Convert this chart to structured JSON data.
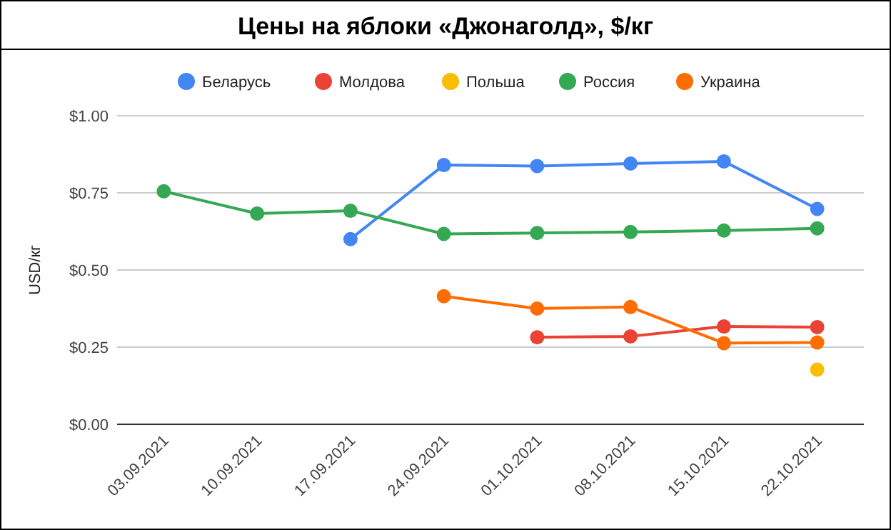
{
  "chart_data": {
    "type": "line",
    "title": "Цены на яблоки «Джонаголд», $/кг",
    "ylabel": "USD/кг",
    "categories": [
      "03.09.2021",
      "10.09.2021",
      "17.09.2021",
      "24.09.2021",
      "01.10.2021",
      "08.10.2021",
      "15.10.2021",
      "22.10.2021"
    ],
    "series": [
      {
        "name": "Беларусь",
        "color": "#4285f4",
        "values": [
          null,
          null,
          0.6,
          0.84,
          0.837,
          0.845,
          0.852,
          0.698
        ]
      },
      {
        "name": "Молдова",
        "color": "#ea4335",
        "values": [
          null,
          null,
          null,
          null,
          0.282,
          0.285,
          0.317,
          0.315
        ]
      },
      {
        "name": "Польша",
        "color": "#fbbc04",
        "values": [
          null,
          null,
          null,
          null,
          null,
          null,
          null,
          0.177
        ]
      },
      {
        "name": "Россия",
        "color": "#34a853",
        "values": [
          0.755,
          0.683,
          0.692,
          0.617,
          0.62,
          0.623,
          0.628,
          0.635
        ]
      },
      {
        "name": "Украина",
        "color": "#ff6d01",
        "values": [
          null,
          null,
          null,
          0.415,
          0.375,
          0.38,
          0.263,
          0.265
        ]
      }
    ],
    "ylim": [
      0,
      1
    ],
    "yticks": [
      {
        "value": 0,
        "label": "$0.00"
      },
      {
        "value": 0.25,
        "label": "$0.25"
      },
      {
        "value": 0.5,
        "label": "$0.50"
      },
      {
        "value": 0.75,
        "label": "$0.75"
      },
      {
        "value": 1,
        "label": "$1.00"
      }
    ],
    "grid": "y",
    "legend": "top",
    "marker": "circle",
    "line_style": "solid"
  }
}
